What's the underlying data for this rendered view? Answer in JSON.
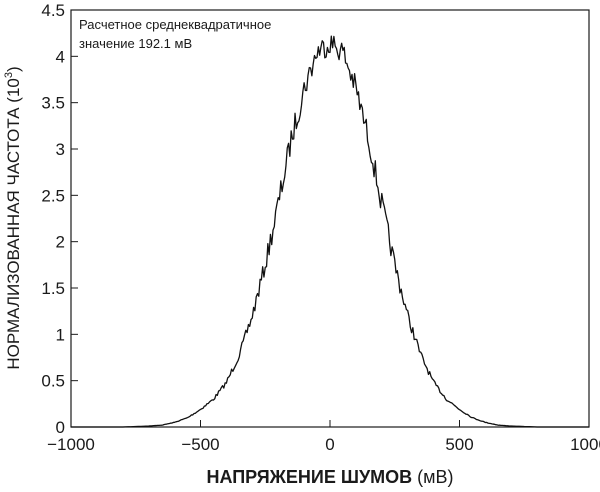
{
  "chart_data": {
    "type": "area",
    "xlim": [
      -1000,
      1000
    ],
    "ylim": [
      0,
      4.5
    ],
    "x_ticks": [
      -1000,
      -500,
      0,
      500,
      1000
    ],
    "x_tick_labels": [
      "−1000",
      "−500",
      "0",
      "500",
      "1000"
    ],
    "y_ticks": [
      0,
      0.5,
      1,
      1.5,
      2,
      2.5,
      3,
      3.5,
      4,
      4.5
    ],
    "y_tick_labels": [
      "0",
      "0.5",
      "1",
      "1.5",
      "2",
      "2.5",
      "3",
      "3.5",
      "4",
      "4.5"
    ],
    "xlabel_main": "НАПРЯЖЕНИЕ ШУМОВ",
    "xlabel_unit": " (мВ)",
    "ylabel_main": "НОРМАЛИЗОВАННАЯ ЧАСТОТА (10",
    "ylabel_sup": "3",
    "ylabel_end": ")",
    "annotation_line1": "Расчетное среднеквадратичное",
    "annotation_line2": "значение 192.1 мВ",
    "series": [
      {
        "x": [
          -1000,
          -900,
          -800,
          -700,
          -650,
          -600,
          -550,
          -500,
          -450,
          -400,
          -350,
          -300,
          -250,
          -200,
          -150,
          -100,
          -50,
          0,
          50,
          100,
          150,
          200,
          250,
          300,
          350,
          400,
          450,
          500,
          550,
          600,
          650,
          700,
          800,
          900,
          1000
        ],
        "values": [
          0,
          0,
          0,
          0.01,
          0.02,
          0.05,
          0.1,
          0.19,
          0.3,
          0.48,
          0.78,
          1.2,
          1.75,
          2.4,
          3.1,
          3.65,
          4.05,
          4.15,
          4.05,
          3.65,
          3.1,
          2.4,
          1.75,
          1.2,
          0.78,
          0.48,
          0.3,
          0.19,
          0.1,
          0.05,
          0.02,
          0.01,
          0,
          0,
          0
        ]
      }
    ]
  }
}
